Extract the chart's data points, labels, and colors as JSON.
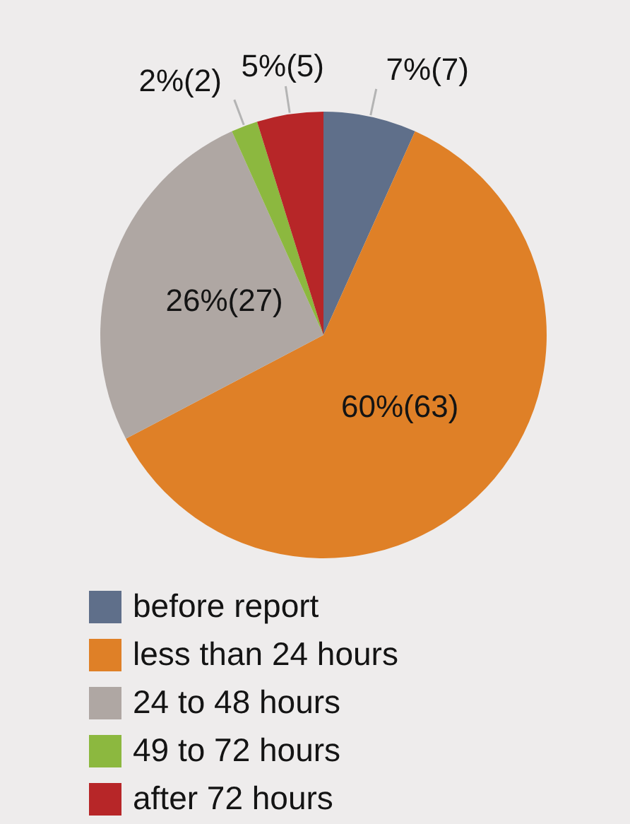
{
  "chart_data": {
    "type": "pie",
    "categories": [
      "before report",
      "less than 24 hours",
      "24 to 48 hours",
      "49 to 72 hours",
      "after 72 hours"
    ],
    "values": [
      7,
      63,
      27,
      2,
      5
    ],
    "colors": [
      "#5f6f8a",
      "#df8027",
      "#afa7a3",
      "#8cb83f",
      "#b72628"
    ],
    "value_labels": [
      "7%(7)",
      "60%(63)",
      "26%(27)",
      "2%(2)",
      "5%(5)"
    ],
    "legend": "bottom"
  }
}
